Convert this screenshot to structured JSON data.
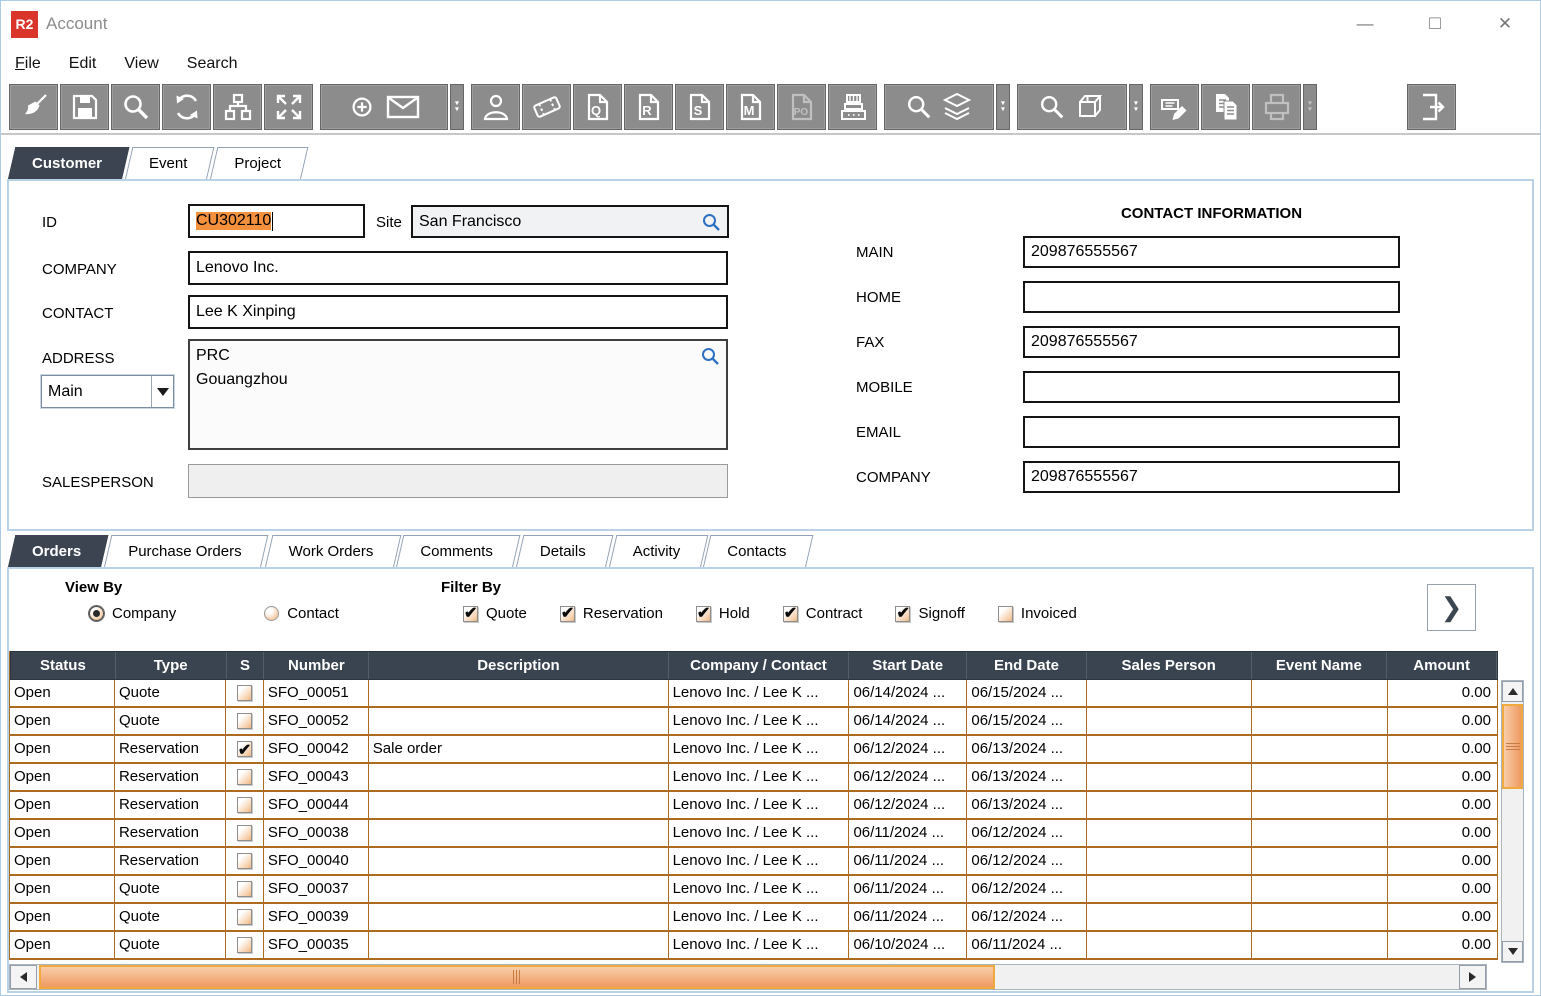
{
  "window": {
    "logo_text": "R2",
    "title": "Account",
    "controls": {
      "minimize": "—",
      "maximize": "□",
      "close": "✕"
    }
  },
  "menu_bar": {
    "items": [
      {
        "label": "File"
      },
      {
        "label": "Edit"
      },
      {
        "label": "View"
      },
      {
        "label": "Search"
      }
    ]
  },
  "toolbar": {
    "buttons": [
      {
        "name": "clear"
      },
      {
        "name": "save"
      },
      {
        "name": "search"
      },
      {
        "name": "refresh"
      },
      {
        "name": "account-tree"
      },
      {
        "name": "expand"
      },
      {
        "name": "new-mail"
      },
      {
        "name": "mail-dropdown"
      },
      {
        "name": "contact"
      },
      {
        "name": "ticket"
      },
      {
        "name": "quote-document"
      },
      {
        "name": "reservation-document"
      },
      {
        "name": "sale-order-document"
      },
      {
        "name": "misc-document"
      },
      {
        "name": "purchase-order-document",
        "disabled": true
      },
      {
        "name": "cash-register"
      },
      {
        "name": "search-stock"
      },
      {
        "name": "stock-dropdown"
      },
      {
        "name": "search-product"
      },
      {
        "name": "product-dropdown"
      },
      {
        "name": "edit-rates"
      },
      {
        "name": "copy-documents"
      },
      {
        "name": "print",
        "disabled": true
      },
      {
        "name": "print-dropdown",
        "disabled": true
      },
      {
        "name": "exit"
      }
    ]
  },
  "main_tabs": [
    {
      "label": "Customer",
      "active": true
    },
    {
      "label": "Event",
      "active": false
    },
    {
      "label": "Project",
      "active": false
    }
  ],
  "customer_form": {
    "id_label": "ID",
    "id_value": "CU302110",
    "site_label": "Site",
    "site_value": "San Francisco",
    "company_label": "COMPANY",
    "company_value": "Lenovo Inc.",
    "contact_label": "CONTACT",
    "contact_value": "Lee K Xinping",
    "address_label": "ADDRESS",
    "address_type": "Main",
    "address_value": "PRC\nGouangzhou",
    "salesperson_label": "SALESPERSON",
    "salesperson_value": ""
  },
  "contact_information": {
    "title": "CONTACT INFORMATION",
    "fields": [
      {
        "label": "MAIN",
        "value": "209876555567"
      },
      {
        "label": "HOME",
        "value": ""
      },
      {
        "label": "FAX",
        "value": "209876555567"
      },
      {
        "label": "MOBILE",
        "value": ""
      },
      {
        "label": "EMAIL",
        "value": ""
      },
      {
        "label": "COMPANY",
        "value": "209876555567"
      }
    ]
  },
  "sub_tabs": [
    {
      "label": "Orders",
      "active": true
    },
    {
      "label": "Purchase Orders",
      "active": false
    },
    {
      "label": "Work Orders",
      "active": false
    },
    {
      "label": "Comments",
      "active": false
    },
    {
      "label": "Details",
      "active": false
    },
    {
      "label": "Activity",
      "active": false
    },
    {
      "label": "Contacts",
      "active": false
    }
  ],
  "orders_panel": {
    "view_by": {
      "label": "View By",
      "options": [
        {
          "label": "Company",
          "selected": true
        },
        {
          "label": "Contact",
          "selected": false
        }
      ]
    },
    "filter_by": {
      "label": "Filter By",
      "options": [
        {
          "label": "Quote",
          "checked": true
        },
        {
          "label": "Reservation",
          "checked": true
        },
        {
          "label": "Hold",
          "checked": true
        },
        {
          "label": "Contract",
          "checked": true
        },
        {
          "label": "Signoff",
          "checked": true
        },
        {
          "label": "Invoiced",
          "checked": false
        }
      ]
    },
    "next_icon": "❯",
    "table": {
      "columns": [
        "Status",
        "Type",
        "S",
        "Number",
        "Description",
        "Company / Contact",
        "Start Date",
        "End Date",
        "Sales Person",
        "Event Name",
        "Amount"
      ],
      "rows": [
        {
          "status": "Open",
          "type": "Quote",
          "s": false,
          "number": "SFO_00051",
          "description": "",
          "company_contact": "Lenovo Inc. / Lee K ...",
          "start_date": "06/14/2024 ...",
          "end_date": "06/15/2024 ...",
          "sales_person": "",
          "event_name": "",
          "amount": "0.00"
        },
        {
          "status": "Open",
          "type": "Quote",
          "s": false,
          "number": "SFO_00052",
          "description": "",
          "company_contact": "Lenovo Inc. / Lee K ...",
          "start_date": "06/14/2024 ...",
          "end_date": "06/15/2024 ...",
          "sales_person": "",
          "event_name": "",
          "amount": "0.00"
        },
        {
          "status": "Open",
          "type": "Reservation",
          "s": true,
          "number": "SFO_00042",
          "description": "Sale order",
          "company_contact": "Lenovo Inc. / Lee K ...",
          "start_date": "06/12/2024 ...",
          "end_date": "06/13/2024 ...",
          "sales_person": "",
          "event_name": "",
          "amount": "0.00"
        },
        {
          "status": "Open",
          "type": "Reservation",
          "s": false,
          "number": "SFO_00043",
          "description": "",
          "company_contact": "Lenovo Inc. / Lee K ...",
          "start_date": "06/12/2024 ...",
          "end_date": "06/13/2024 ...",
          "sales_person": "",
          "event_name": "",
          "amount": "0.00"
        },
        {
          "status": "Open",
          "type": "Reservation",
          "s": false,
          "number": "SFO_00044",
          "description": "",
          "company_contact": "Lenovo Inc. / Lee K ...",
          "start_date": "06/12/2024 ...",
          "end_date": "06/13/2024 ...",
          "sales_person": "",
          "event_name": "",
          "amount": "0.00"
        },
        {
          "status": "Open",
          "type": "Reservation",
          "s": false,
          "number": "SFO_00038",
          "description": "",
          "company_contact": "Lenovo Inc. / Lee K ...",
          "start_date": "06/11/2024 ...",
          "end_date": "06/12/2024 ...",
          "sales_person": "",
          "event_name": "",
          "amount": "0.00"
        },
        {
          "status": "Open",
          "type": "Reservation",
          "s": false,
          "number": "SFO_00040",
          "description": "",
          "company_contact": "Lenovo Inc. / Lee K ...",
          "start_date": "06/11/2024 ...",
          "end_date": "06/12/2024 ...",
          "sales_person": "",
          "event_name": "",
          "amount": "0.00"
        },
        {
          "status": "Open",
          "type": "Quote",
          "s": false,
          "number": "SFO_00037",
          "description": "",
          "company_contact": "Lenovo Inc. / Lee K ...",
          "start_date": "06/11/2024 ...",
          "end_date": "06/12/2024 ...",
          "sales_person": "",
          "event_name": "",
          "amount": "0.00"
        },
        {
          "status": "Open",
          "type": "Quote",
          "s": false,
          "number": "SFO_00039",
          "description": "",
          "company_contact": "Lenovo Inc. / Lee K ...",
          "start_date": "06/11/2024 ...",
          "end_date": "06/12/2024 ...",
          "sales_person": "",
          "event_name": "",
          "amount": "0.00"
        },
        {
          "status": "Open",
          "type": "Quote",
          "s": false,
          "number": "SFO_00035",
          "description": "",
          "company_contact": "Lenovo Inc. / Lee K ...",
          "start_date": "06/10/2024 ...",
          "end_date": "06/11/2024 ...",
          "sales_person": "",
          "event_name": "",
          "amount": "0.00"
        }
      ]
    }
  },
  "colors": {
    "brand_red": "#d9352b",
    "tab_active_dark": "#3b4450",
    "table_header_dark": "#3a4450",
    "grid_orange": "#ad6a21",
    "scroll_thumb_orange": "#ee9a61",
    "scroll_thumb_border": "#f0a93c",
    "selection_orange": "#f5913d",
    "search_icon_blue": "#2e70c2",
    "panel_border_blue": "#bad2e8",
    "toolbar_gray": "#8c8c8c"
  }
}
